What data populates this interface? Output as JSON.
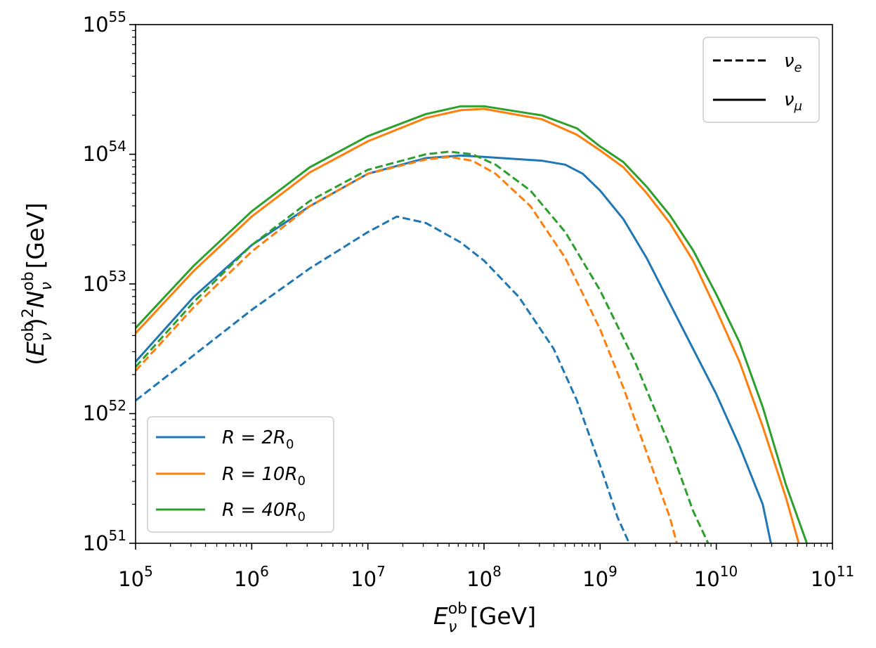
{
  "chart_data": {
    "type": "line",
    "title": "",
    "xlabel": "E_ν^ob [GeV]",
    "ylabel": "(E_ν^ob)^2 N_ν^ob [GeV]",
    "xscale": "log",
    "yscale": "log",
    "xlim_exp": [
      5,
      11
    ],
    "ylim_exp": [
      51,
      55
    ],
    "x_ticks": [
      {
        "base": "10",
        "exp": "5"
      },
      {
        "base": "10",
        "exp": "6"
      },
      {
        "base": "10",
        "exp": "7"
      },
      {
        "base": "10",
        "exp": "8"
      },
      {
        "base": "10",
        "exp": "9"
      },
      {
        "base": "10",
        "exp": "10"
      },
      {
        "base": "10",
        "exp": "11"
      }
    ],
    "y_ticks": [
      {
        "base": "10",
        "exp": "51"
      },
      {
        "base": "10",
        "exp": "52"
      },
      {
        "base": "10",
        "exp": "53"
      },
      {
        "base": "10",
        "exp": "54"
      },
      {
        "base": "10",
        "exp": "55"
      }
    ],
    "colors": {
      "blue": "#1f77b4",
      "orange": "#ff7f0e",
      "green": "#2ca02c"
    },
    "legend_style": {
      "location": "upper right",
      "entries": [
        {
          "label": "ν",
          "sub": "e",
          "linestyle": "dashed"
        },
        {
          "label": "ν",
          "sub": "μ",
          "linestyle": "solid"
        }
      ]
    },
    "legend_radius": {
      "location": "lower left",
      "entries": [
        {
          "label_left": "R = 2R",
          "sub": "0",
          "color": "blue"
        },
        {
          "label_left": "R = 10R",
          "sub": "0",
          "color": "orange"
        },
        {
          "label_left": "R = 40R",
          "sub": "0",
          "color": "green"
        }
      ]
    },
    "series": [
      {
        "name": "R=2R0 nu_mu",
        "color": "blue",
        "dash": false,
        "points": [
          [
            5,
            52.4
          ],
          [
            5.5,
            52.9
          ],
          [
            6,
            53.3
          ],
          [
            6.5,
            53.6
          ],
          [
            7,
            53.85
          ],
          [
            7.5,
            53.97
          ],
          [
            7.8,
            53.99
          ],
          [
            8,
            53.98
          ],
          [
            8.5,
            53.95
          ],
          [
            8.7,
            53.92
          ],
          [
            8.85,
            53.85
          ],
          [
            9,
            53.72
          ],
          [
            9.2,
            53.5
          ],
          [
            9.4,
            53.2
          ],
          [
            9.6,
            52.85
          ],
          [
            9.8,
            52.5
          ],
          [
            10,
            52.15
          ],
          [
            10.2,
            51.75
          ],
          [
            10.4,
            51.3
          ],
          [
            10.47,
            51.0
          ]
        ]
      },
      {
        "name": "R=10R0 nu_mu",
        "color": "orange",
        "dash": false,
        "points": [
          [
            5,
            52.62
          ],
          [
            5.5,
            53.1
          ],
          [
            6,
            53.52
          ],
          [
            6.5,
            53.86
          ],
          [
            7,
            54.1
          ],
          [
            7.5,
            54.28
          ],
          [
            7.8,
            54.34
          ],
          [
            8,
            54.35
          ],
          [
            8.5,
            54.27
          ],
          [
            8.8,
            54.15
          ],
          [
            9,
            54.03
          ],
          [
            9.2,
            53.9
          ],
          [
            9.4,
            53.7
          ],
          [
            9.6,
            53.47
          ],
          [
            9.8,
            53.18
          ],
          [
            10,
            52.8
          ],
          [
            10.2,
            52.4
          ],
          [
            10.4,
            51.9
          ],
          [
            10.6,
            51.35
          ],
          [
            10.71,
            51.0
          ]
        ]
      },
      {
        "name": "R=40R0 nu_mu",
        "color": "green",
        "dash": false,
        "points": [
          [
            5,
            52.66
          ],
          [
            5.5,
            53.14
          ],
          [
            6,
            53.56
          ],
          [
            6.5,
            53.9
          ],
          [
            7,
            54.14
          ],
          [
            7.5,
            54.31
          ],
          [
            7.8,
            54.37
          ],
          [
            8,
            54.37
          ],
          [
            8.5,
            54.3
          ],
          [
            8.8,
            54.2
          ],
          [
            9,
            54.06
          ],
          [
            9.2,
            53.94
          ],
          [
            9.4,
            53.75
          ],
          [
            9.6,
            53.53
          ],
          [
            9.8,
            53.26
          ],
          [
            10,
            52.92
          ],
          [
            10.2,
            52.55
          ],
          [
            10.4,
            52.05
          ],
          [
            10.6,
            51.45
          ],
          [
            10.78,
            51.0
          ]
        ]
      },
      {
        "name": "R=2R0 nu_e",
        "color": "blue",
        "dash": true,
        "points": [
          [
            5,
            52.1
          ],
          [
            5.5,
            52.45
          ],
          [
            6,
            52.8
          ],
          [
            6.5,
            53.12
          ],
          [
            7,
            53.4
          ],
          [
            7.25,
            53.52
          ],
          [
            7.5,
            53.47
          ],
          [
            7.8,
            53.32
          ],
          [
            8,
            53.18
          ],
          [
            8.3,
            52.9
          ],
          [
            8.6,
            52.5
          ],
          [
            8.8,
            52.1
          ],
          [
            9,
            51.6
          ],
          [
            9.15,
            51.2
          ],
          [
            9.25,
            51.0
          ]
        ]
      },
      {
        "name": "R=10R0 nu_e",
        "color": "orange",
        "dash": true,
        "points": [
          [
            5,
            52.33
          ],
          [
            5.5,
            52.82
          ],
          [
            6,
            53.25
          ],
          [
            6.5,
            53.6
          ],
          [
            7,
            53.85
          ],
          [
            7.5,
            53.96
          ],
          [
            7.7,
            53.98
          ],
          [
            7.9,
            53.95
          ],
          [
            8.1,
            53.85
          ],
          [
            8.4,
            53.6
          ],
          [
            8.7,
            53.2
          ],
          [
            9,
            52.65
          ],
          [
            9.2,
            52.2
          ],
          [
            9.4,
            51.7
          ],
          [
            9.6,
            51.2
          ],
          [
            9.66,
            51.0
          ]
        ]
      },
      {
        "name": "R=40R0 nu_e",
        "color": "green",
        "dash": true,
        "points": [
          [
            5,
            52.36
          ],
          [
            5.5,
            52.86
          ],
          [
            6,
            53.3
          ],
          [
            6.5,
            53.64
          ],
          [
            7,
            53.88
          ],
          [
            7.5,
            54.0
          ],
          [
            7.7,
            54.02
          ],
          [
            7.9,
            54.0
          ],
          [
            8.1,
            53.92
          ],
          [
            8.4,
            53.72
          ],
          [
            8.7,
            53.4
          ],
          [
            9,
            52.95
          ],
          [
            9.3,
            52.4
          ],
          [
            9.6,
            51.75
          ],
          [
            9.8,
            51.25
          ],
          [
            9.93,
            51.0
          ]
        ]
      }
    ]
  }
}
